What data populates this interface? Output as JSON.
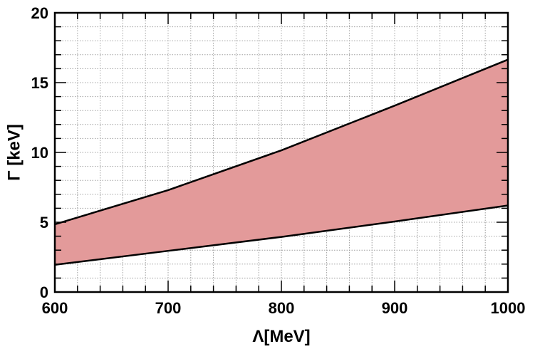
{
  "chart_data": {
    "type": "area",
    "title": "",
    "xlabel": "Λ[MeV]",
    "ylabel": "Γ [keV]",
    "xlim": [
      600,
      1000
    ],
    "ylim": [
      0,
      20
    ],
    "grid": true,
    "x_ticks": [
      600,
      700,
      800,
      900,
      1000
    ],
    "y_ticks": [
      0,
      5,
      10,
      15,
      20
    ],
    "x_tick_labels": [
      "600",
      "700",
      "800",
      "900",
      "1000"
    ],
    "y_tick_labels": [
      "0",
      "5",
      "10",
      "15",
      "20"
    ],
    "band": {
      "x": [
        600,
        700,
        800,
        900,
        1000
      ],
      "upper": [
        4.85,
        7.3,
        10.15,
        13.35,
        16.65
      ],
      "lower": [
        1.95,
        2.95,
        3.95,
        5.05,
        6.2
      ]
    },
    "colors": {
      "band_fill": "#e39a9a",
      "band_edge": "#000000",
      "grid": "#a0a0a0",
      "axes": "#000000"
    }
  }
}
